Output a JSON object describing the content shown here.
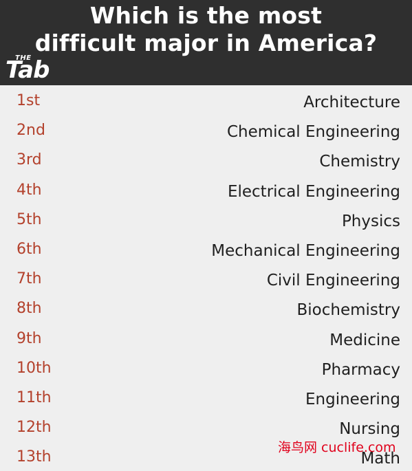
{
  "header": {
    "title_line1": "Which is the most",
    "title_line2": "difficult major in America?",
    "logo_small": "THE",
    "logo_main": "Tab"
  },
  "rankings": [
    {
      "rank": "1st",
      "major": "Architecture"
    },
    {
      "rank": "2nd",
      "major": "Chemical Engineering"
    },
    {
      "rank": "3rd",
      "major": "Chemistry"
    },
    {
      "rank": "4th",
      "major": "Electrical Engineering"
    },
    {
      "rank": "5th",
      "major": "Physics"
    },
    {
      "rank": "6th",
      "major": "Mechanical Engineering"
    },
    {
      "rank": "7th",
      "major": "Civil Engineering"
    },
    {
      "rank": "8th",
      "major": "Biochemistry"
    },
    {
      "rank": "9th",
      "major": "Medicine"
    },
    {
      "rank": "10th",
      "major": "Pharmacy"
    },
    {
      "rank": "11th",
      "major": "Engineering"
    },
    {
      "rank": "12th",
      "major": "Nursing"
    },
    {
      "rank": "13th",
      "major": "Math"
    }
  ],
  "watermark": "海鸟网 cuclife.com",
  "colors": {
    "header_bg": "#2f2f2f",
    "body_bg": "#efefef",
    "rank_text": "#b3412c",
    "major_text": "#1f1f1f",
    "watermark_text": "#e0001b"
  }
}
